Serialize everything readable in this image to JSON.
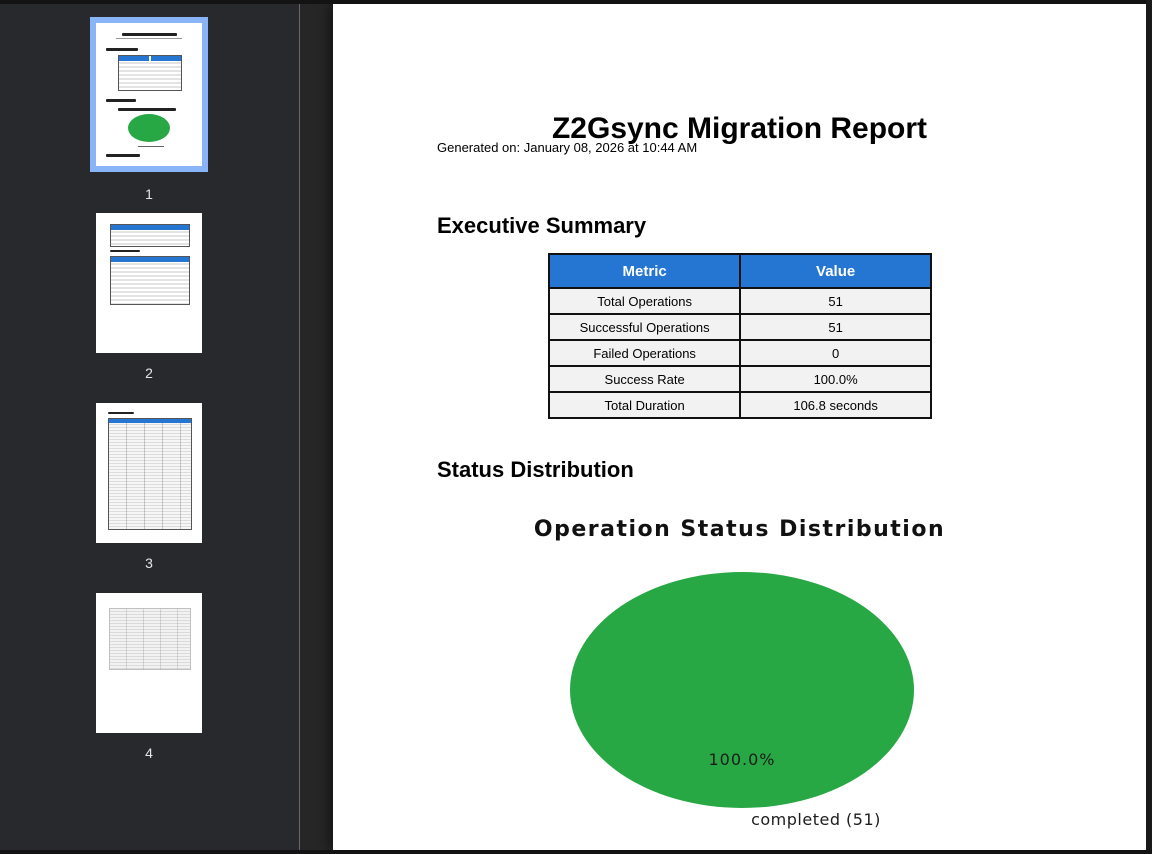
{
  "viewer": {
    "thumbnails": [
      {
        "page": "1",
        "selected": true
      },
      {
        "page": "2",
        "selected": false
      },
      {
        "page": "3",
        "selected": false
      },
      {
        "page": "4",
        "selected": false
      }
    ]
  },
  "document": {
    "title": "Z2Gsync Migration Report",
    "generated_line": "Generated on: January 08, 2026 at 10:44 AM",
    "executive_summary": {
      "heading": "Executive Summary",
      "table": {
        "headers": [
          "Metric",
          "Value"
        ],
        "rows": [
          [
            "Total Operations",
            "51"
          ],
          [
            "Successful Operations",
            "51"
          ],
          [
            "Failed Operations",
            "0"
          ],
          [
            "Success Rate",
            "100.0%"
          ],
          [
            "Total Duration",
            "106.8 seconds"
          ]
        ]
      }
    },
    "status_distribution": {
      "heading": "Status Distribution"
    }
  },
  "chart_data": {
    "type": "pie",
    "title": "Operation Status Distribution",
    "slices": [
      {
        "label": "completed (51)",
        "value": 51,
        "percent_label": "100.0%",
        "color": "#28a745"
      }
    ],
    "legend_position": "below-pie",
    "notes": "single slice covering full circle; percent label inside slice, category label below"
  },
  "colors": {
    "table_header_bg": "#2575d2",
    "pie_green": "#28a745",
    "selection_blue": "#8ab4f8",
    "sidebar_bg": "#28292c",
    "viewport_bg": "#262626"
  }
}
